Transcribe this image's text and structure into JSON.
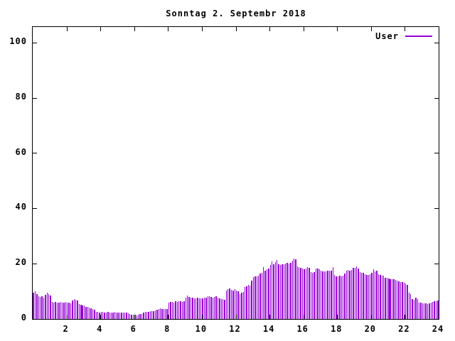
{
  "title": "Sonntag 2. Septembr 2018",
  "legend": {
    "label": "User"
  },
  "colors": {
    "bar": "#9400D3",
    "axis": "#000000",
    "text": "#000000",
    "background": "#ffffff"
  },
  "chart_data": {
    "type": "bar",
    "style": "impulses",
    "title": "Sonntag 2. Septembr 2018",
    "xlabel": "",
    "ylabel": "",
    "x_unit": "hour of day",
    "sample_interval_minutes": 6,
    "xlim": [
      0,
      24
    ],
    "ylim": [
      0,
      105.6
    ],
    "x_ticks": [
      2,
      4,
      6,
      8,
      10,
      12,
      14,
      16,
      18,
      20,
      22,
      24
    ],
    "y_ticks": [
      0,
      20,
      40,
      60,
      80,
      100
    ],
    "grid": false,
    "legend_position": "top-right-inside",
    "series": [
      {
        "name": "User",
        "color": "#9400D3",
        "values": [
          9.4,
          10.0,
          8.9,
          8.1,
          7.9,
          8.3,
          7.7,
          8.8,
          9.4,
          9.0,
          8.5,
          6.2,
          6.0,
          6.1,
          5.9,
          6.0,
          6.2,
          5.8,
          6.0,
          6.1,
          5.9,
          6.0,
          5.6,
          6.8,
          7.2,
          7.0,
          6.6,
          5.4,
          5.2,
          5.0,
          4.8,
          4.5,
          4.3,
          4.1,
          3.8,
          3.6,
          3.3,
          2.6,
          2.5,
          2.4,
          2.6,
          2.5,
          2.4,
          2.3,
          2.5,
          2.4,
          2.2,
          2.3,
          2.5,
          2.4,
          2.3,
          2.2,
          2.4,
          2.3,
          2.2,
          2.4,
          2.0,
          1.8,
          1.6,
          1.5,
          1.5,
          1.4,
          1.5,
          1.7,
          1.9,
          2.2,
          2.5,
          2.6,
          2.7,
          2.8,
          2.8,
          2.9,
          3.0,
          3.4,
          3.7,
          3.8,
          3.6,
          3.5,
          3.6,
          3.7,
          5.9,
          6.1,
          6.2,
          6.0,
          6.3,
          6.2,
          6.4,
          6.3,
          6.2,
          6.4,
          7.7,
          8.5,
          7.9,
          7.8,
          7.6,
          7.5,
          7.4,
          7.6,
          7.5,
          7.4,
          7.5,
          7.6,
          7.7,
          8.2,
          8.3,
          8.0,
          7.8,
          7.9,
          8.1,
          7.7,
          7.4,
          7.2,
          7.3,
          6.9,
          10.3,
          10.8,
          11.1,
          10.5,
          10.2,
          10.7,
          10.4,
          10.0,
          9.0,
          9.4,
          9.8,
          11.5,
          11.8,
          12.4,
          12.0,
          14.0,
          15.2,
          15.5,
          15.4,
          15.8,
          16.5,
          16.8,
          18.8,
          17.5,
          17.9,
          18.2,
          19.5,
          20.9,
          19.8,
          20.5,
          21.3,
          19.8,
          19.6,
          19.9,
          19.7,
          20.1,
          20.3,
          20.0,
          20.4,
          21.0,
          21.9,
          21.5,
          19.0,
          18.7,
          18.5,
          18.2,
          18.0,
          18.3,
          18.8,
          18.5,
          16.9,
          16.7,
          17.0,
          18.3,
          18.2,
          18.0,
          17.4,
          17.2,
          17.3,
          17.1,
          17.5,
          17.4,
          17.6,
          18.8,
          16.0,
          15.5,
          15.4,
          15.6,
          15.5,
          15.8,
          16.5,
          17.4,
          17.7,
          17.5,
          17.8,
          18.4,
          18.6,
          19.0,
          18.3,
          17.0,
          16.8,
          16.6,
          16.3,
          16.0,
          15.9,
          16.1,
          16.8,
          17.9,
          17.2,
          17.5,
          16.2,
          15.9,
          15.7,
          15.8,
          15.0,
          14.8,
          14.6,
          14.5,
          14.3,
          14.4,
          14.1,
          13.9,
          13.6,
          13.4,
          13.3,
          13.1,
          12.8,
          12.4,
          9.4,
          9.0,
          7.2,
          7.0,
          7.7,
          7.1,
          6.0,
          5.8,
          5.7,
          5.6,
          5.7,
          5.5,
          5.6,
          6.0,
          6.2,
          6.3,
          6.5,
          6.8
        ]
      }
    ]
  }
}
